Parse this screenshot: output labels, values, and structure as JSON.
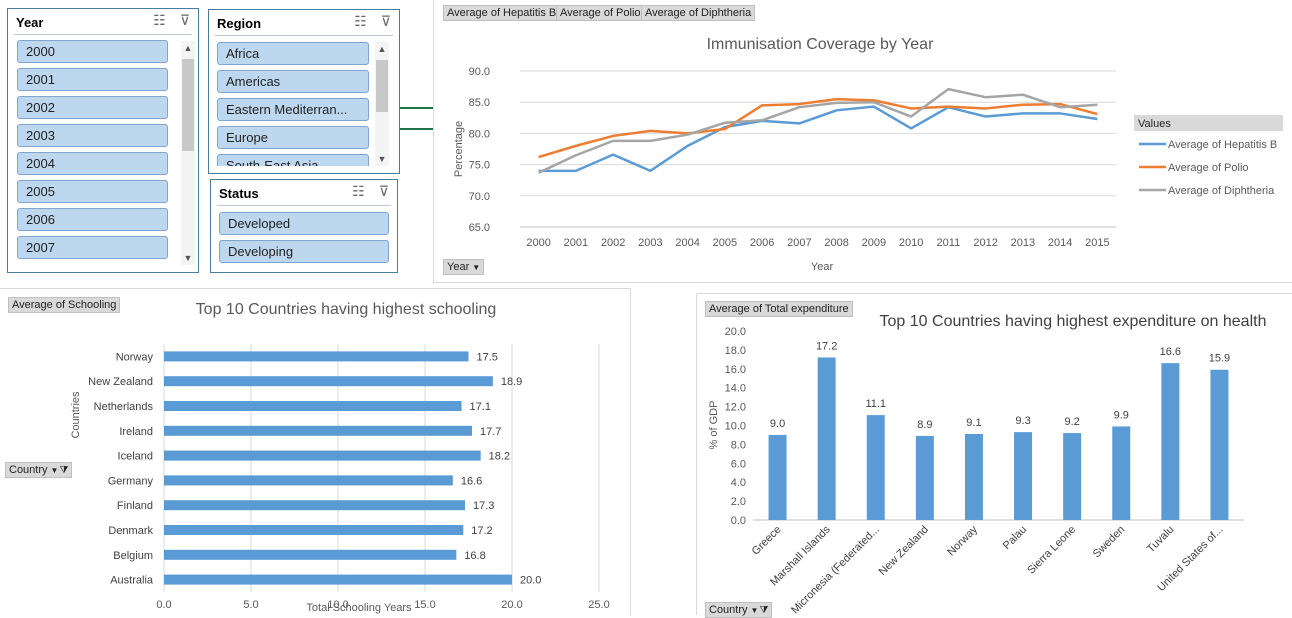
{
  "slicers": {
    "year": {
      "title": "Year",
      "items": [
        "2000",
        "2001",
        "2002",
        "2003",
        "2004",
        "2005",
        "2006",
        "2007"
      ]
    },
    "region": {
      "title": "Region",
      "items": [
        "Africa",
        "Americas",
        "Eastern Mediterran...",
        "Europe",
        "South-East Asia"
      ]
    },
    "status": {
      "title": "Status",
      "items": [
        "Developed",
        "Developing"
      ]
    },
    "icons": {
      "multiselect": "multi-select-icon",
      "clear": "clear-filter-icon"
    }
  },
  "line_chart": {
    "field_buttons": [
      "Average of Hepatitis B",
      "Average of Polio",
      "Average of Diphtheria"
    ],
    "axis_button": "Year",
    "legend_title": "Values",
    "colors": {
      "hepb": "#5b9bd5",
      "polio": "#ed7d31",
      "diph": "#a5a5a5"
    }
  },
  "schooling_chart": {
    "field_button": "Average of Schooling",
    "axis_button": "Country",
    "bar_color": "#5b9bd5"
  },
  "expenditure_chart": {
    "field_button": "Average of Total expenditure",
    "axis_button": "Country",
    "bar_color": "#5b9bd5"
  },
  "chart_data": [
    {
      "type": "line",
      "title": "Immunisation  Coverage by Year",
      "xlabel": "Year",
      "ylabel": "Percentage",
      "x": [
        "2000",
        "2001",
        "2002",
        "2003",
        "2004",
        "2005",
        "2006",
        "2007",
        "2008",
        "2009",
        "2010",
        "2011",
        "2012",
        "2013",
        "2014",
        "2015"
      ],
      "ylim": [
        65,
        90
      ],
      "yticks": [
        "65.0",
        "70.0",
        "75.0",
        "80.0",
        "85.0",
        "90.0"
      ],
      "grid": true,
      "legend": "right",
      "series": [
        {
          "name": "Average of Hepatitis B",
          "values": [
            74.0,
            74.0,
            76.6,
            74.0,
            78.0,
            81.0,
            82.0,
            81.6,
            83.7,
            84.3,
            80.8,
            84.2,
            82.7,
            83.2,
            83.2,
            82.3
          ]
        },
        {
          "name": "Average of Polio",
          "values": [
            76.2,
            78.0,
            79.6,
            80.4,
            80.0,
            80.7,
            84.5,
            84.7,
            85.5,
            85.3,
            84.0,
            84.3,
            84.0,
            84.6,
            84.7,
            83.1
          ]
        },
        {
          "name": "Average of Diphtheria",
          "values": [
            73.7,
            76.5,
            78.8,
            78.8,
            79.8,
            81.7,
            82.1,
            84.2,
            84.9,
            85.0,
            82.7,
            87.1,
            85.8,
            86.2,
            84.2,
            84.6
          ]
        }
      ]
    },
    {
      "type": "bar",
      "orientation": "horizontal",
      "title": "Top 10 Countries having highest schooling",
      "xlabel": "Total Schooling Years",
      "ylabel": "Countries",
      "categories": [
        "Norway",
        "New Zealand",
        "Netherlands",
        "Ireland",
        "Iceland",
        "Germany",
        "Finland",
        "Denmark",
        "Belgium",
        "Australia"
      ],
      "values": [
        17.5,
        18.9,
        17.1,
        17.7,
        18.2,
        16.6,
        17.3,
        17.2,
        16.8,
        20.0
      ],
      "value_labels": [
        "17.5",
        "18.9",
        "17.1",
        "17.7",
        "18.2",
        "16.6",
        "17.3",
        "17.2",
        "16.8",
        "20.0"
      ],
      "xlim": [
        0,
        25
      ],
      "xticks": [
        "0.0",
        "5.0",
        "10.0",
        "15.0",
        "20.0",
        "25.0"
      ],
      "grid": true
    },
    {
      "type": "bar",
      "title": "Top 10 Countries having highest expenditure on health",
      "ylabel": "% of GDP",
      "categories": [
        "Greece",
        "Marshall Islands",
        "Micronesia (Federated...",
        "New Zealand",
        "Norway",
        "Palau",
        "Sierra Leone",
        "Sweden",
        "Tuvalu",
        "United States of..."
      ],
      "values": [
        9.0,
        17.2,
        11.1,
        8.9,
        9.1,
        9.3,
        9.2,
        9.9,
        16.6,
        15.9
      ],
      "value_labels": [
        "9.0",
        "17.2",
        "11.1",
        "8.9",
        "9.1",
        "9.3",
        "9.2",
        "9.9",
        "16.6",
        "15.9"
      ],
      "ylim": [
        0,
        20
      ],
      "yticks": [
        "0.0",
        "2.0",
        "4.0",
        "6.0",
        "8.0",
        "10.0",
        "12.0",
        "14.0",
        "16.0",
        "18.0",
        "20.0"
      ],
      "grid": false
    }
  ]
}
